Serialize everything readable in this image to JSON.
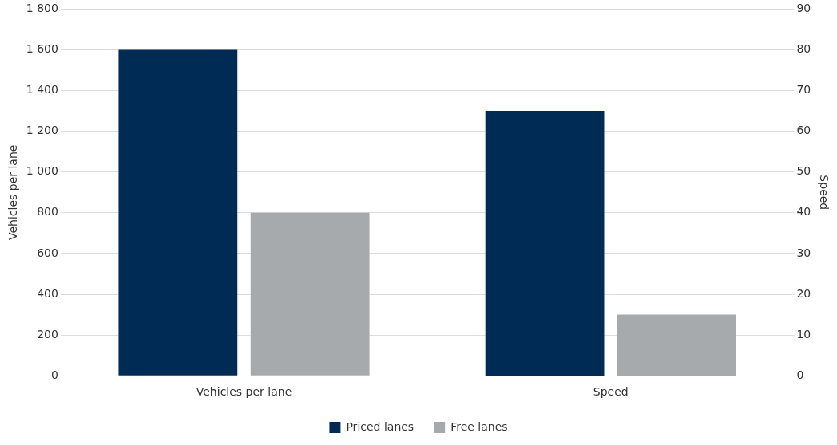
{
  "chart_data": {
    "type": "bar",
    "categories": [
      "Vehicles per lane",
      "Speed"
    ],
    "series": [
      {
        "name": "Priced lanes",
        "color": "#002b55",
        "values": [
          1600,
          null
        ]
      },
      {
        "name": "Free lanes",
        "color": "#a7aaad",
        "values": [
          800,
          null
        ]
      },
      {
        "color": "#002b55",
        "values": [
          null,
          65
        ],
        "axis": "y2"
      },
      {
        "color": "#a7aaad",
        "values": [
          null,
          15
        ],
        "axis": "y2"
      }
    ],
    "ylabel": "Vehicles per lane",
    "y2label": "Speed",
    "ylim": [
      0,
      1800
    ],
    "yticks": [
      0,
      200,
      400,
      600,
      800,
      {
        "value": 1000,
        "label": "1 000"
      },
      {
        "value": 1200,
        "label": "1 200"
      },
      {
        "value": 1400,
        "label": "1 400"
      },
      {
        "value": 1600,
        "label": "1 600"
      },
      {
        "value": 1800,
        "label": "1 800"
      }
    ],
    "y2lim": [
      0,
      90
    ],
    "y2ticks": [
      0,
      10,
      20,
      30,
      40,
      50,
      60,
      70,
      80,
      90
    ],
    "grid": "y",
    "legend": "bottom"
  }
}
